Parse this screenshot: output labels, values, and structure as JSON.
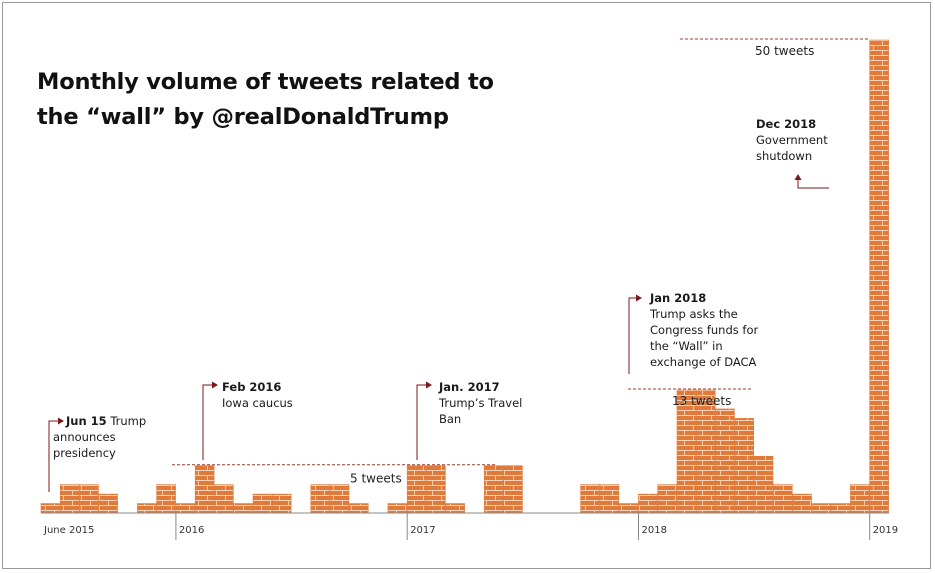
{
  "title_lines": [
    "Monthly volume of tweets related to",
    "the “wall” by @realDonaldTrump"
  ],
  "colors": {
    "bar": "#e07a3a",
    "brick_line": "#f7d2b6",
    "axis": "#888888",
    "annot": "#7a1a1a",
    "ref_line": "#9c3d2a"
  },
  "chart_data": {
    "type": "bar",
    "title": "Monthly volume of tweets related to the “wall” by @realDonaldTrump",
    "xlabel": "",
    "ylabel": "",
    "ylim": [
      0,
      50
    ],
    "grid": false,
    "legend": "none",
    "categories": [
      "Jun 2015",
      "Jul 2015",
      "Aug 2015",
      "Sep 2015",
      "Oct 2015",
      "Nov 2015",
      "Dec 2015",
      "Jan 2016",
      "Feb 2016",
      "Mar 2016",
      "Apr 2016",
      "May 2016",
      "Jun 2016",
      "Jul 2016",
      "Aug 2016",
      "Sep 2016",
      "Oct 2016",
      "Nov 2016",
      "Dec 2016",
      "Jan 2017",
      "Feb 2017",
      "Mar 2017",
      "Apr 2017",
      "May 2017",
      "Jun 2017",
      "Jul 2017",
      "Aug 2017",
      "Sep 2017",
      "Oct 2017",
      "Nov 2017",
      "Dec 2017",
      "Jan 2018",
      "Feb 2018",
      "Mar 2018",
      "Apr 2018",
      "May 2018",
      "Jun 2018",
      "Jul 2018",
      "Aug 2018",
      "Sep 2018",
      "Oct 2018",
      "Nov 2018",
      "Dec 2018",
      "Jan 2019"
    ],
    "values": [
      1,
      3,
      3,
      2,
      0,
      1,
      3,
      1,
      5,
      3,
      1,
      2,
      2,
      0,
      3,
      3,
      1,
      0,
      1,
      5,
      5,
      1,
      0,
      5,
      5,
      0,
      0,
      0,
      3,
      3,
      1,
      2,
      3,
      13,
      13,
      11,
      10,
      6,
      3,
      2,
      1,
      1,
      3,
      50
    ],
    "tick_labels": [
      {
        "text": "June 2015",
        "index": 0
      },
      {
        "text": "2016",
        "index": 7
      },
      {
        "text": "2017",
        "index": 19
      },
      {
        "text": "2018",
        "index": 31
      },
      {
        "text": "2019",
        "index": 43
      }
    ],
    "reference_lines": [
      {
        "value": 5,
        "label": "5 tweets"
      },
      {
        "value": 13,
        "label": "13 tweets"
      },
      {
        "value": 50,
        "label": "50 tweets"
      }
    ],
    "annotations": [
      {
        "bold": "Jun 15",
        "lines": [
          "Trump",
          "announces",
          "presidency"
        ],
        "index": 0
      },
      {
        "bold": "Feb 2016",
        "lines": [
          "Iowa caucus"
        ],
        "index": 8
      },
      {
        "bold": "Jan. 2017",
        "lines": [
          "Trump’s Travel",
          "Ban"
        ],
        "index": 19
      },
      {
        "bold": "Jan 2018",
        "lines": [
          "Trump asks the",
          "Congress funds for",
          "the “Wall” in",
          "exchange of DACA"
        ],
        "index": 31
      },
      {
        "bold": "Dec 2018",
        "lines": [
          "Government",
          "shutdown"
        ],
        "index": 42
      }
    ]
  }
}
